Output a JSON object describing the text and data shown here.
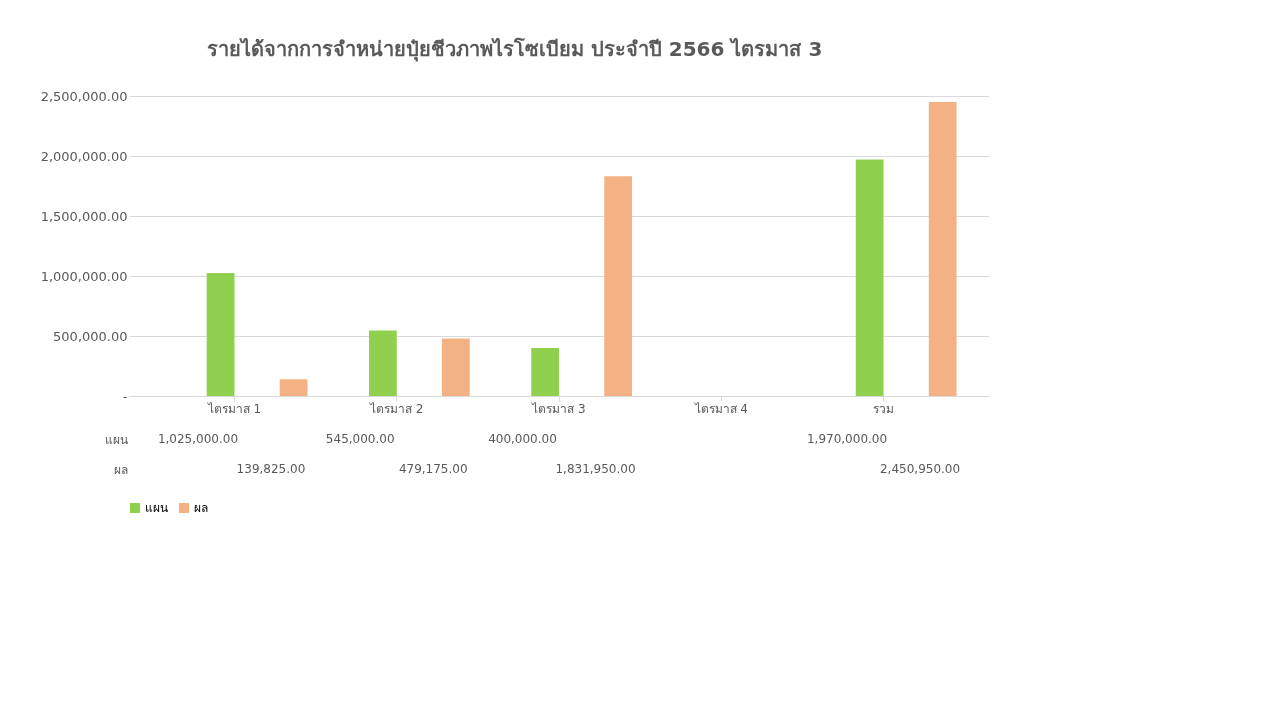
{
  "chart_data": {
    "type": "bar",
    "title": "รายได้จากการจำหน่ายปุ๋ยชีวภาพไรโซเบียม ประจำปี 2566 ไตรมาส 3",
    "categories": [
      "ไตรมาส 1",
      "ไตรมาส 2",
      "ไตรมาส 3",
      "ไตรมาส 4",
      "รวม"
    ],
    "series": [
      {
        "name": "แผน",
        "color": "#8fd14f",
        "values": [
          1025000,
          545000,
          400000,
          null,
          1970000
        ],
        "value_labels": [
          "1,025,000.00",
          "545,000.00",
          "400,000.00",
          null,
          "1,970,000.00"
        ]
      },
      {
        "name": "ผล",
        "color": "#f4b183",
        "values": [
          139825,
          479175,
          1831950,
          null,
          2450950
        ],
        "value_labels": [
          "139,825.00",
          "479,175.00",
          "1,831,950.00",
          null,
          "2,450,950.00"
        ]
      }
    ],
    "ylim": [
      0,
      2500000
    ],
    "yticks": [
      {
        "value": 0,
        "label": "-"
      },
      {
        "value": 500000,
        "label": "500,000.00"
      },
      {
        "value": 1000000,
        "label": "1,000,000.00"
      },
      {
        "value": 1500000,
        "label": "1,500,000.00"
      },
      {
        "value": 2000000,
        "label": "2,000,000.00"
      },
      {
        "value": 2500000,
        "label": "2,500,000.00"
      }
    ],
    "grid": "y",
    "legend": "bottom"
  }
}
